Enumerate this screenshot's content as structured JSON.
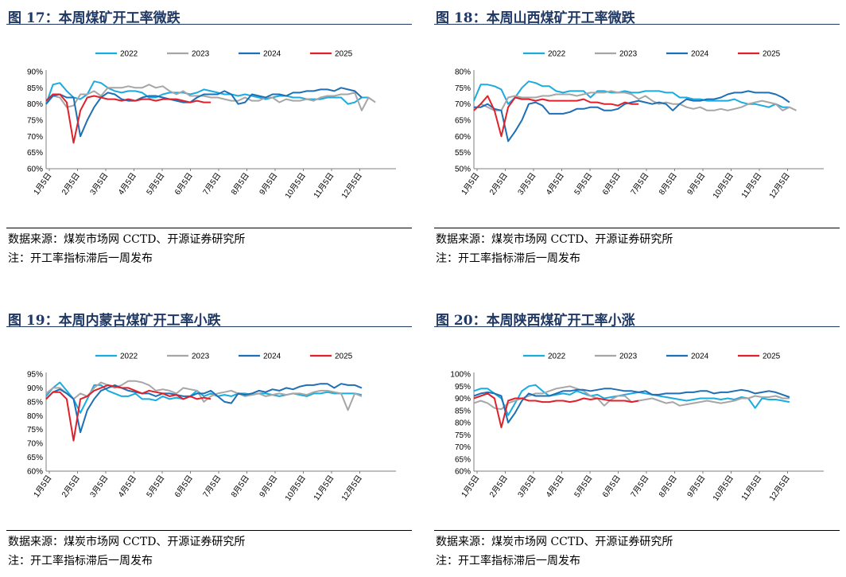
{
  "charts": [
    {
      "title": "图 17：本周煤矿开工率微跌",
      "source": "数据来源：煤炭市场网 CCTD、开源证券研究所",
      "note": "注：开工率指标滞后一周发布"
    },
    {
      "title": "图 18：本周山西煤矿开工率微跌",
      "source": "数据来源：煤炭市场网 CCTD、开源证券研究所",
      "note": "注：开工率指标滞后一周发布"
    },
    {
      "title": "图 19：本周内蒙古煤矿开工率小跌",
      "source": "数据来源：煤炭市场网 CCTD、开源证券研究所",
      "note": "注：开工率指标滞后一周发布"
    },
    {
      "title": "图 20：本周陕西煤矿开工率小涨",
      "source": "数据来源：煤炭市场网 CCTD、开源证券研究所",
      "note": "注：开工率指标滞后一周发布"
    }
  ],
  "colors": {
    "2022": "#1aabe0",
    "2023": "#a6a6a6",
    "2024": "#1f6fb4",
    "2025": "#e0202a",
    "title": "#1f3864"
  },
  "chart_data": [
    {
      "type": "line",
      "title": "图 17：本周煤矿开工率微跌",
      "x_ticks": [
        "1月5日",
        "2月5日",
        "3月5日",
        "4月5日",
        "5月5日",
        "6月5日",
        "7月5日",
        "8月5日",
        "9月5日",
        "10月5日",
        "11月5日",
        "12月5日"
      ],
      "y_ticks": [
        "60%",
        "65%",
        "70%",
        "75%",
        "80%",
        "85%",
        "90%"
      ],
      "ylim": [
        60,
        90
      ],
      "legend_position": "top",
      "series": [
        {
          "name": "2022",
          "values": [
            80,
            86,
            86.5,
            84,
            82,
            81.5,
            83,
            87,
            86.5,
            85,
            84,
            83.5,
            84,
            84,
            83.5,
            82,
            82,
            83,
            83.5,
            83.5,
            83.5,
            83,
            83.5,
            84.5,
            84,
            83.5,
            83,
            83,
            82.5,
            83,
            82.5,
            82,
            81.5,
            82,
            82.5,
            82.5,
            82,
            82,
            81.5,
            81.5,
            81.5,
            82,
            82,
            82,
            80,
            80.5,
            82,
            82
          ]
        },
        {
          "name": "2023",
          "values": [
            81,
            82.5,
            82,
            79,
            79.5,
            83,
            83,
            84,
            82.5,
            85,
            85,
            85,
            85.5,
            85,
            85,
            86,
            85,
            85.5,
            84,
            83,
            84,
            82.5,
            82.5,
            82.5,
            82,
            82,
            81.5,
            81,
            81,
            82,
            81,
            81,
            82,
            82,
            80.5,
            81.5,
            81,
            81,
            81.5,
            81,
            82,
            82.5,
            82.5,
            83,
            83,
            83.5,
            78,
            82,
            80.5
          ]
        },
        {
          "name": "2024",
          "values": [
            80,
            82.5,
            83,
            82,
            82,
            70,
            75,
            79,
            82,
            83.5,
            83,
            81.5,
            81,
            81,
            82,
            82.5,
            82.5,
            82,
            81.5,
            81,
            80.5,
            80.5,
            82,
            83,
            83,
            83,
            84,
            83,
            80,
            80.5,
            83,
            82.5,
            82,
            83,
            83,
            82.5,
            83.5,
            83.5,
            84,
            84,
            84.5,
            84.5,
            84,
            85,
            84.5,
            84,
            82
          ]
        },
        {
          "name": "2025",
          "values": [
            81,
            83,
            83,
            80.5,
            68,
            78,
            82,
            82.5,
            82,
            81.5,
            81.5,
            81,
            81.5,
            81,
            81.5,
            81.5,
            81,
            81.5,
            81.5,
            81.5,
            81,
            80.5,
            81,
            80.5,
            80.5
          ]
        }
      ]
    },
    {
      "type": "line",
      "title": "图 18：本周山西煤矿开工率微跌",
      "x_ticks": [
        "1月5日",
        "2月5日",
        "3月5日",
        "4月5日",
        "5月5日",
        "6月5日",
        "7月5日",
        "8月5日",
        "9月5日",
        "10月5日",
        "11月5日",
        "12月5日"
      ],
      "y_ticks": [
        "50%",
        "55%",
        "60%",
        "65%",
        "70%",
        "75%",
        "80%"
      ],
      "ylim": [
        50,
        80
      ],
      "legend_position": "top",
      "series": [
        {
          "name": "2022",
          "values": [
            71,
            76,
            76,
            75.5,
            74.5,
            70,
            72,
            75,
            77,
            76.5,
            75.5,
            75.5,
            74,
            73.5,
            74,
            74,
            74,
            72,
            74,
            74,
            73.5,
            73.5,
            74,
            73.5,
            73.5,
            74,
            74,
            74,
            73.5,
            73.5,
            72,
            72,
            71.5,
            71.5,
            71,
            71,
            71,
            71,
            71.5,
            70.5,
            70,
            70,
            69.5,
            69,
            70,
            69,
            69
          ]
        },
        {
          "name": "2023",
          "values": [
            68,
            70,
            69,
            68,
            68,
            72,
            72.5,
            72,
            72,
            72,
            72.5,
            72.5,
            73,
            73,
            73,
            72.5,
            73,
            73.5,
            73.5,
            73.5,
            74,
            73.5,
            73.5,
            73,
            71.5,
            72.5,
            71,
            70,
            70.5,
            70,
            70,
            69,
            68.5,
            69,
            68,
            68,
            68.5,
            68,
            68.5,
            69,
            70,
            70.5,
            71,
            70.5,
            70,
            68,
            69,
            68
          ]
        },
        {
          "name": "2024",
          "values": [
            69,
            69,
            70,
            68.5,
            68,
            58.5,
            61.5,
            65,
            70,
            70.5,
            69.5,
            67,
            67,
            67,
            67.5,
            68.5,
            68.5,
            69,
            69,
            68,
            68,
            68.5,
            70,
            70.5,
            71,
            70.5,
            70,
            70.5,
            70,
            68,
            70,
            71.5,
            71,
            71,
            71.5,
            71.5,
            72,
            73,
            73.5,
            73.5,
            74,
            73.5,
            73.5,
            73.5,
            73,
            72,
            70.5
          ]
        },
        {
          "name": "2025",
          "values": [
            68,
            70,
            72.5,
            68,
            60,
            69,
            72,
            71.5,
            71.5,
            71,
            71.5,
            71,
            71,
            71,
            71,
            71,
            71.5,
            70.5,
            70.5,
            70,
            70,
            69.5,
            70.5,
            70,
            70
          ]
        }
      ]
    },
    {
      "type": "line",
      "title": "图 19：本周内蒙古煤矿开工率小跌",
      "x_ticks": [
        "1月5日",
        "2月5日",
        "3月5日",
        "4月5日",
        "5月5日",
        "6月5日",
        "7月5日",
        "8月5日",
        "9月5日",
        "10月5日",
        "11月5日",
        "12月5日"
      ],
      "y_ticks": [
        "60%",
        "65%",
        "70%",
        "75%",
        "80%",
        "85%",
        "90%",
        "95%"
      ],
      "ylim": [
        60,
        95
      ],
      "legend_position": "top",
      "series": [
        {
          "name": "2022",
          "values": [
            87,
            90,
            92,
            89,
            86,
            81,
            86,
            91,
            91,
            89,
            88,
            87,
            87,
            88,
            86,
            86,
            85.5,
            87,
            86,
            86.5,
            86,
            87,
            89,
            87,
            88,
            87,
            87.5,
            87,
            88,
            88,
            87.5,
            88,
            88,
            87.5,
            87,
            87.5,
            88,
            87.5,
            87,
            88,
            88,
            88.5,
            88,
            88,
            88,
            88,
            87.5
          ]
        },
        {
          "name": "2023",
          "values": [
            88,
            90,
            90,
            88,
            86,
            88,
            87,
            90,
            92,
            91,
            90,
            91,
            92.5,
            92.5,
            92,
            91,
            89,
            89.5,
            89,
            88,
            90,
            89.5,
            89,
            85,
            87,
            88,
            88.5,
            89,
            88,
            87,
            87.5,
            88,
            87,
            87.5,
            88,
            87.5,
            88,
            88,
            87.5,
            88.5,
            89,
            89,
            88.5,
            88,
            82,
            88,
            87
          ]
        },
        {
          "name": "2024",
          "values": [
            86,
            88.5,
            89.5,
            88,
            86,
            74,
            82,
            86,
            89,
            90,
            91,
            90,
            89,
            88.5,
            88,
            88,
            87,
            88,
            88,
            87.5,
            87,
            87,
            88,
            88,
            89,
            87,
            85,
            84.5,
            88,
            87.5,
            88,
            89,
            88.5,
            89.5,
            89,
            90,
            89.5,
            90.5,
            91,
            91,
            91.5,
            91.5,
            90,
            91.5,
            91,
            91,
            90
          ]
        },
        {
          "name": "2025",
          "values": [
            86,
            88.5,
            88.5,
            86,
            71,
            86,
            87,
            89,
            90,
            91,
            90.5,
            90,
            90,
            89,
            88,
            89,
            88.5,
            88,
            87,
            87.5,
            86,
            87,
            86,
            86.5,
            86
          ]
        }
      ]
    },
    {
      "type": "line",
      "title": "图 20：本周陕西煤矿开工率小涨",
      "x_ticks": [
        "1月5日",
        "2月5日",
        "3月5日",
        "4月5日",
        "5月5日",
        "6月5日",
        "7月5日",
        "8月5日",
        "9月5日",
        "10月5日",
        "11月5日",
        "12月5日"
      ],
      "y_ticks": [
        "60%",
        "65%",
        "70%",
        "75%",
        "80%",
        "85%",
        "90%",
        "95%",
        "100%"
      ],
      "ylim": [
        60,
        100
      ],
      "legend_position": "top",
      "series": [
        {
          "name": "2022",
          "values": [
            93,
            94,
            94,
            92,
            90,
            83,
            88,
            93,
            95,
            95.5,
            93,
            91,
            91.5,
            92,
            91.5,
            93,
            92,
            91,
            91.5,
            90,
            90.5,
            91,
            91.5,
            92,
            92.5,
            92,
            91.5,
            91,
            90.5,
            90,
            89.5,
            89,
            89.5,
            90,
            90,
            90,
            89.5,
            90,
            89.5,
            90.5,
            90,
            86,
            90,
            89.5,
            89.5,
            89,
            88.5
          ]
        },
        {
          "name": "2023",
          "values": [
            88,
            89,
            88,
            86,
            85.5,
            88,
            89,
            90,
            91,
            92,
            92,
            93,
            94,
            94.5,
            95,
            94,
            93,
            91,
            90,
            87,
            89.5,
            91,
            91,
            88.5,
            89,
            89.5,
            90,
            89,
            88,
            88.5,
            87,
            87.5,
            88,
            88.5,
            89,
            88.5,
            88,
            88.5,
            89,
            90,
            90,
            91,
            90.5,
            90.5,
            91,
            90,
            90
          ]
        },
        {
          "name": "2024",
          "values": [
            91,
            92,
            92.5,
            92,
            91,
            80,
            84,
            89,
            92,
            91,
            91,
            91,
            92,
            93,
            93,
            93.5,
            93.5,
            93,
            93.5,
            94,
            94,
            93.5,
            93,
            93,
            92.5,
            93,
            91.5,
            91.5,
            92,
            92,
            92,
            92.5,
            92.5,
            93,
            93,
            92,
            92.5,
            92.5,
            93,
            93.5,
            93,
            92,
            92.5,
            93,
            92.5,
            91.5,
            90.5
          ]
        },
        {
          "name": "2025",
          "values": [
            90,
            91,
            92,
            90,
            78,
            89,
            90,
            90,
            89,
            89,
            88.5,
            88.5,
            89,
            89,
            88.5,
            89,
            90,
            89.5,
            90,
            89.5,
            89,
            89,
            89,
            88.5,
            89
          ]
        }
      ]
    }
  ]
}
